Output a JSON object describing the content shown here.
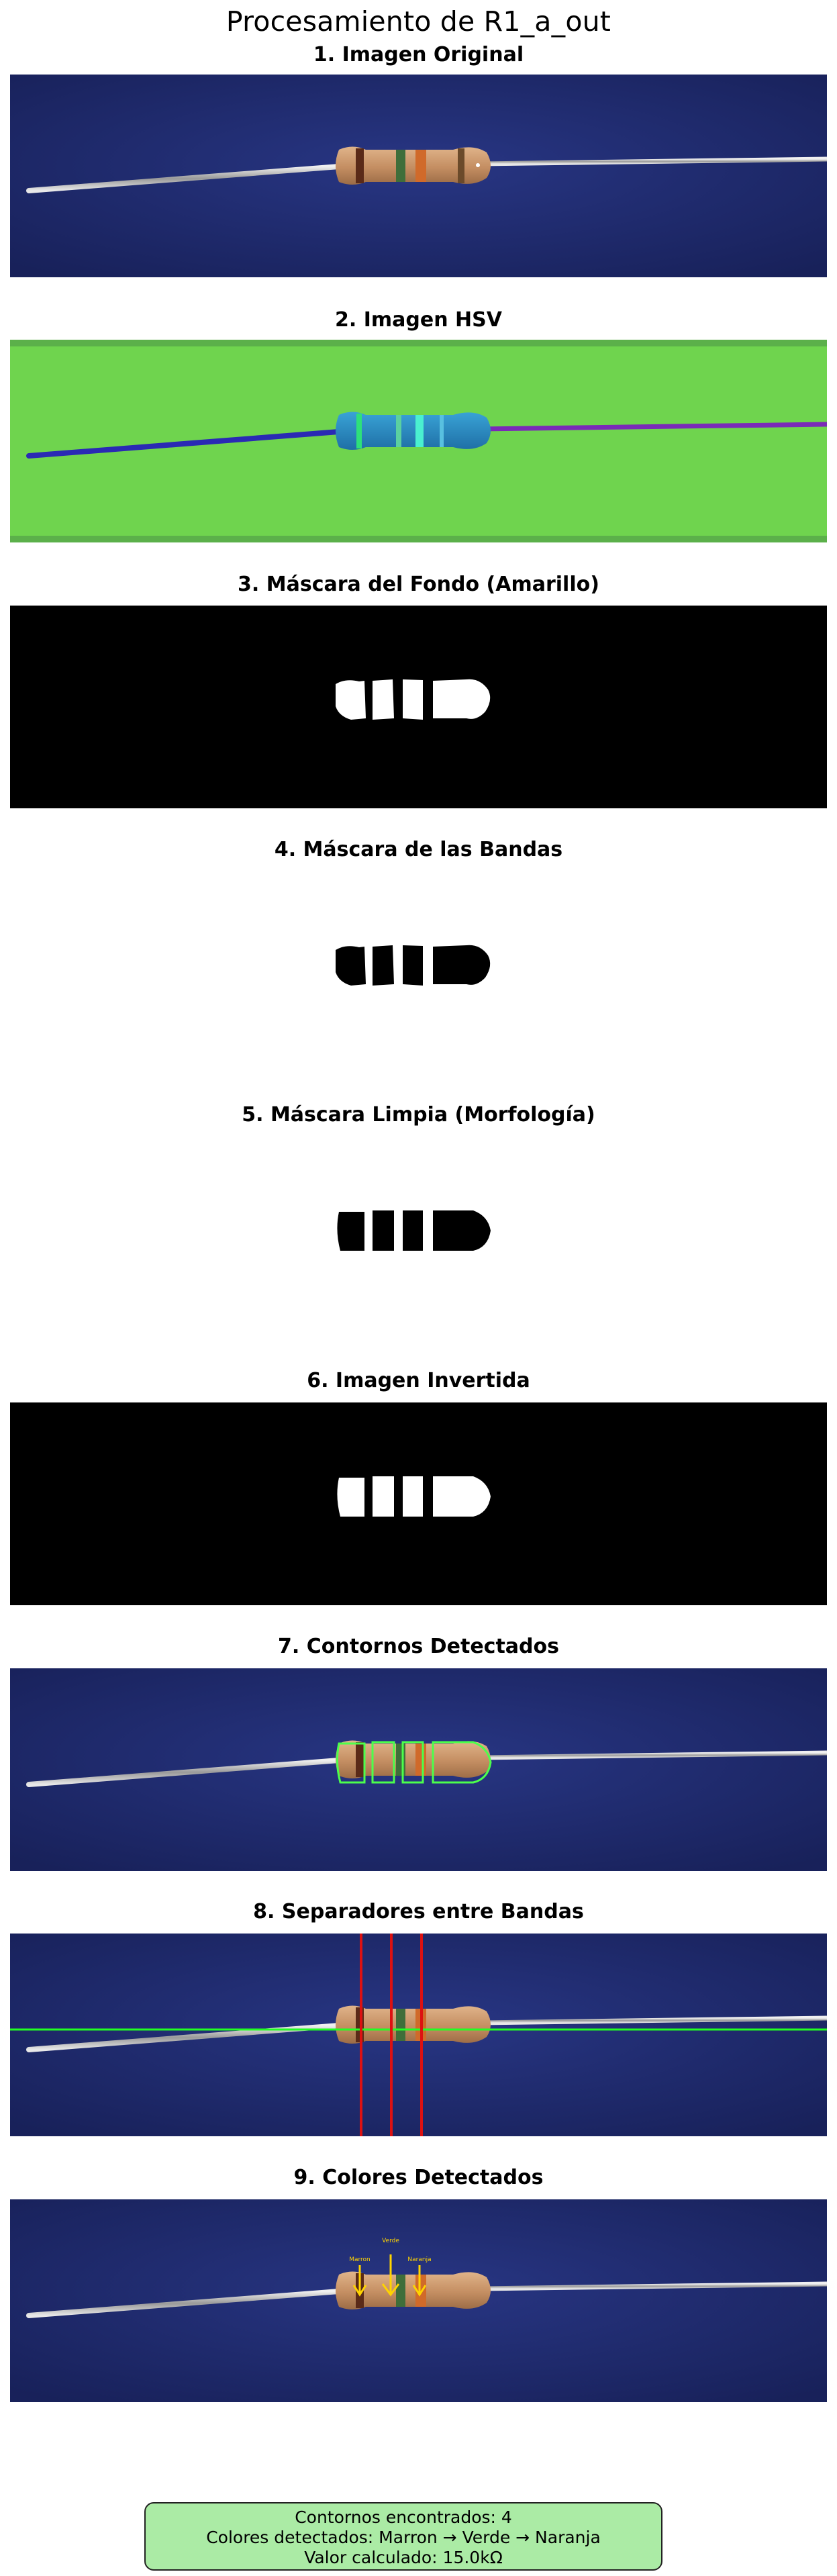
{
  "title": "Procesamiento de R1_a_out",
  "panels": [
    {
      "title": "1. Imagen Original"
    },
    {
      "title": "2. Imagen HSV"
    },
    {
      "title": "3. Máscara del Fondo (Amarillo)"
    },
    {
      "title": "4. Máscara de las Bandas"
    },
    {
      "title": "5. Máscara Limpia (Morfología)"
    },
    {
      "title": "6. Imagen Invertida"
    },
    {
      "title": "7. Contornos Detectados"
    },
    {
      "title": "8. Separadores entre Bandas"
    },
    {
      "title": "9. Colores Detectados"
    }
  ],
  "annotations": {
    "band1": "Marron",
    "band2": "Verde",
    "band3": "Naranja"
  },
  "summary": {
    "contours": "Contornos encontrados: 4",
    "colors": "Colores detectados: Marron → Verde → Naranja",
    "value": "Valor calculado: 15.0kΩ"
  },
  "colors": {
    "background_blue": "#1f2a6e",
    "resistor_body": "#c9966b",
    "hsv_green": "#6fd44e",
    "hsv_body": "#2b8fc6",
    "summary_fill": "#abeba5",
    "contour_green": "#4cff4c",
    "separator_red": "#dd1111",
    "arrow_yellow": "#ffd400"
  }
}
